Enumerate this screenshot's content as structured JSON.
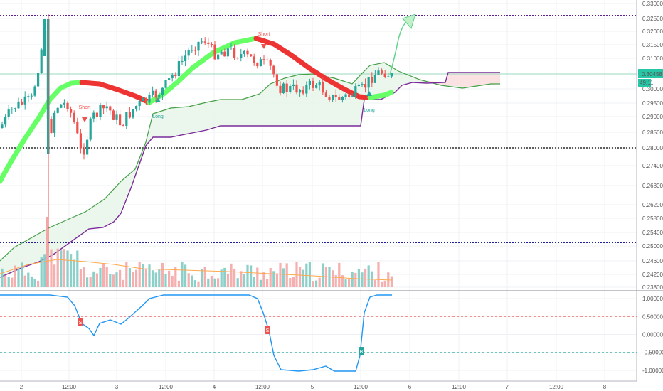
{
  "chart_data": [
    {
      "type": "candlestick",
      "panel": "price",
      "y_ticks": [
        0.33,
        0.325,
        0.32,
        0.315,
        0.31,
        0.305,
        0.3,
        0.295,
        0.29,
        0.285,
        0.28,
        0.274,
        0.268,
        0.262,
        0.258,
        0.254,
        0.25,
        0.246,
        0.242,
        0.238
      ],
      "y_tick_labels": [
        "0.33000",
        "0.32500",
        "0.32000",
        "0.31500",
        "0.31000",
        "0.30500",
        "0.30000",
        "0.29500",
        "0.29000",
        "0.28500",
        "0.28000",
        "0.27400",
        "0.26800",
        "0.26200",
        "0.25800",
        "0.25400",
        "0.25000",
        "0.24600",
        "0.24200",
        "0.23800"
      ],
      "current_price_label": "0.30458",
      "countdown_label": "49:11",
      "horizontal_levels": [
        {
          "value": 0.326,
          "style": "dotted",
          "color": "#4b0082"
        },
        {
          "value": 0.28,
          "style": "dotted",
          "color": "#000000"
        },
        {
          "value": 0.251,
          "style": "dotted",
          "color": "#00008b"
        }
      ],
      "signals": [
        {
          "text": "Short",
          "color": "#ef5350"
        },
        {
          "text": "Short",
          "color": "#ef5350"
        },
        {
          "text": "Long",
          "color": "#26a69a"
        },
        {
          "text": "Long",
          "color": "#26a69a"
        }
      ],
      "colors": {
        "up": "#26a69a",
        "down": "#ef5350",
        "cloud_up": "#66ff66",
        "cloud_down": "#ee3333",
        "stop_line": "#7b2c9a",
        "band_line": "#43a047"
      }
    },
    {
      "type": "line",
      "panel": "oscillator",
      "y_ticks": [
        1,
        0.5,
        0,
        -0.5,
        -1
      ],
      "y_tick_labels": [
        "1.00000",
        "0.50000",
        "0.00000",
        "-0.50000",
        "-1.00000"
      ],
      "ylim": [
        -1.1,
        1.1
      ],
      "signals": [
        {
          "text": "S",
          "color": "#ef5350"
        },
        {
          "text": "S",
          "color": "#ef5350"
        },
        {
          "text": "B",
          "color": "#26a69a"
        }
      ],
      "x_tick_labels": [
        "2",
        "12:00",
        "3",
        "12:00",
        "4",
        "12:00",
        "5",
        "12:00",
        "6",
        "12:00",
        "7",
        "12:00",
        "8"
      ]
    }
  ]
}
